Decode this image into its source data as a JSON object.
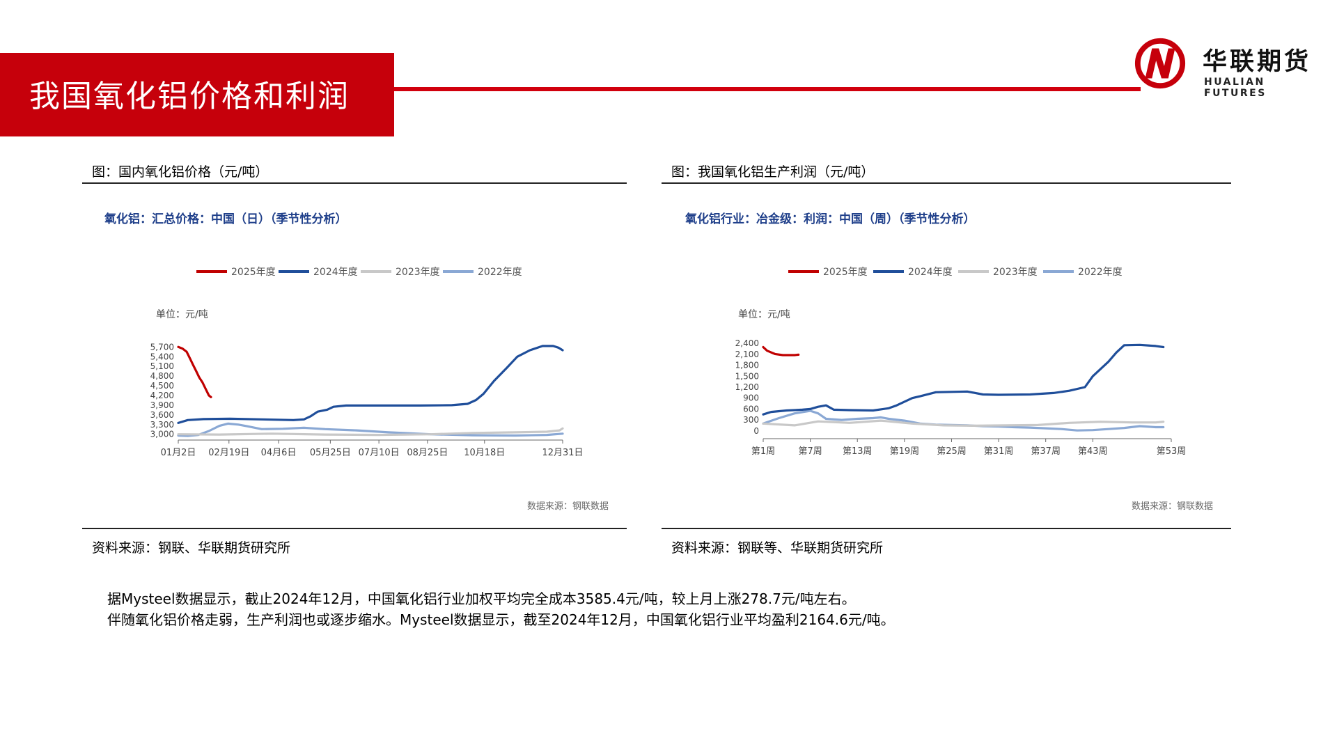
{
  "header": {
    "title": "我国氧化铝价格和利润",
    "logo_cn": "华联期货",
    "logo_en": "HUALIAN FUTURES",
    "accent_color": "#c6000b"
  },
  "panels": [
    {
      "caption": "图：国内氧化铝价格（元/吨）",
      "source": "资料来源：钢联、华联期货研究所"
    },
    {
      "caption": "图：我国氧化铝生产利润（元/吨）",
      "source": "资料来源：钢联等、华联期货研究所"
    }
  ],
  "summary": [
    "据Mysteel数据显示，截止2024年12月，中国氧化铝行业加权平均完全成本3585.4元/吨，较上月上涨278.7元/吨左右。",
    "伴随氧化铝价格走弱，生产利润也或逐步缩水。Mysteel数据显示，截至2024年12月，中国氧化铝行业平均盈利2164.6元/吨。"
  ],
  "chart_data": [
    {
      "type": "line",
      "title": "氧化铝：汇总价格：中国（日）（季节性分析）",
      "unit_label": "单位：元/吨",
      "source_note": "数据来源：钢联数据",
      "x_ticks": [
        "01月2日",
        "02月19日",
        "04月6日",
        "05月25日",
        "07月10日",
        "08月25日",
        "10月18日",
        "12月31日"
      ],
      "x_tick_days": [
        1,
        49,
        96,
        145,
        191,
        237,
        291,
        365
      ],
      "y_ticks": [
        "5,700",
        "5,400",
        "5,100",
        "4,800",
        "4,500",
        "4,200",
        "3,900",
        "3,600",
        "3,300",
        "3,000"
      ],
      "ylim": [
        2950,
        5750
      ],
      "legend_position": "top",
      "series": [
        {
          "name": "2025年度",
          "color": "#c00000",
          "points": [
            [
              1,
              5700
            ],
            [
              5,
              5650
            ],
            [
              9,
              5550
            ],
            [
              12,
              5350
            ],
            [
              15,
              5150
            ],
            [
              18,
              4950
            ],
            [
              21,
              4750
            ],
            [
              24,
              4600
            ],
            [
              27,
              4400
            ],
            [
              30,
              4200
            ],
            [
              32,
              4150
            ]
          ]
        },
        {
          "name": "2024年度",
          "color": "#1f4e9a",
          "points": [
            [
              1,
              3350
            ],
            [
              10,
              3440
            ],
            [
              25,
              3470
            ],
            [
              50,
              3480
            ],
            [
              80,
              3460
            ],
            [
              110,
              3440
            ],
            [
              120,
              3460
            ],
            [
              126,
              3550
            ],
            [
              133,
              3700
            ],
            [
              142,
              3760
            ],
            [
              148,
              3850
            ],
            [
              160,
              3890
            ],
            [
              190,
              3890
            ],
            [
              230,
              3890
            ],
            [
              260,
              3900
            ],
            [
              275,
              3940
            ],
            [
              283,
              4060
            ],
            [
              290,
              4250
            ],
            [
              300,
              4650
            ],
            [
              312,
              5050
            ],
            [
              322,
              5400
            ],
            [
              334,
              5600
            ],
            [
              346,
              5730
            ],
            [
              356,
              5730
            ],
            [
              361,
              5680
            ],
            [
              365,
              5600
            ]
          ]
        },
        {
          "name": "2023年度",
          "color": "#c8c8c8",
          "points": [
            [
              1,
              3000
            ],
            [
              40,
              2990
            ],
            [
              90,
              3020
            ],
            [
              140,
              2990
            ],
            [
              190,
              2980
            ],
            [
              240,
              3000
            ],
            [
              280,
              3040
            ],
            [
              320,
              3060
            ],
            [
              350,
              3080
            ],
            [
              362,
              3120
            ],
            [
              365,
              3180
            ]
          ]
        },
        {
          "name": "2022年度",
          "color": "#8aa8d4",
          "points": [
            [
              1,
              2960
            ],
            [
              10,
              2950
            ],
            [
              20,
              2980
            ],
            [
              30,
              3100
            ],
            [
              40,
              3260
            ],
            [
              48,
              3330
            ],
            [
              58,
              3300
            ],
            [
              66,
              3250
            ],
            [
              80,
              3160
            ],
            [
              100,
              3170
            ],
            [
              120,
              3200
            ],
            [
              140,
              3160
            ],
            [
              170,
              3120
            ],
            [
              200,
              3060
            ],
            [
              240,
              3000
            ],
            [
              280,
              2970
            ],
            [
              320,
              2960
            ],
            [
              350,
              2980
            ],
            [
              365,
              3020
            ]
          ]
        }
      ]
    },
    {
      "type": "line",
      "title": "氧化铝行业：冶金级：利润：中国（周）（季节性分析）",
      "unit_label": "单位：元/吨",
      "source_note": "数据来源：钢联数据",
      "x_ticks": [
        "第1周",
        "第7周",
        "第13周",
        "第19周",
        "第25周",
        "第31周",
        "第37周",
        "第43周",
        "第53周"
      ],
      "x_tick_weeks": [
        1,
        7,
        13,
        19,
        25,
        31,
        37,
        43,
        53
      ],
      "y_ticks": [
        "2,400",
        "2,100",
        "1,800",
        "1,500",
        "1,200",
        "900",
        "600",
        "300",
        "0"
      ],
      "ylim": [
        -100,
        2500
      ],
      "legend_position": "top",
      "series": [
        {
          "name": "2025年度",
          "color": "#c00000",
          "points": [
            [
              1,
              2300
            ],
            [
              1.5,
              2200
            ],
            [
              2.5,
              2110
            ],
            [
              3.5,
              2080
            ],
            [
              5,
              2080
            ],
            [
              5.5,
              2090
            ]
          ]
        },
        {
          "name": "2024年度",
          "color": "#1f4e9a",
          "points": [
            [
              1,
              450
            ],
            [
              2,
              520
            ],
            [
              4,
              560
            ],
            [
              6,
              580
            ],
            [
              7,
              600
            ],
            [
              8,
              660
            ],
            [
              9,
              700
            ],
            [
              10,
              580
            ],
            [
              12,
              570
            ],
            [
              15,
              560
            ],
            [
              17,
              620
            ],
            [
              18,
              700
            ],
            [
              20,
              900
            ],
            [
              21,
              950
            ],
            [
              23,
              1060
            ],
            [
              27,
              1080
            ],
            [
              29,
              1000
            ],
            [
              31,
              990
            ],
            [
              35,
              1000
            ],
            [
              38,
              1040
            ],
            [
              40,
              1100
            ],
            [
              42,
              1200
            ],
            [
              43,
              1500
            ],
            [
              45,
              1900
            ],
            [
              46,
              2150
            ],
            [
              47,
              2350
            ],
            [
              49,
              2360
            ],
            [
              51,
              2330
            ],
            [
              52,
              2300
            ]
          ]
        },
        {
          "name": "2023年度",
          "color": "#c8c8c8",
          "points": [
            [
              1,
              200
            ],
            [
              5,
              150
            ],
            [
              8,
              260
            ],
            [
              12,
              220
            ],
            [
              16,
              280
            ],
            [
              20,
              200
            ],
            [
              24,
              150
            ],
            [
              28,
              140
            ],
            [
              32,
              150
            ],
            [
              36,
              160
            ],
            [
              40,
              220
            ],
            [
              44,
              250
            ],
            [
              48,
              230
            ],
            [
              51,
              230
            ],
            [
              52,
              250
            ]
          ]
        },
        {
          "name": "2022年度",
          "color": "#8aa8d4",
          "points": [
            [
              1,
              200
            ],
            [
              3,
              350
            ],
            [
              5,
              480
            ],
            [
              7,
              550
            ],
            [
              8,
              480
            ],
            [
              9,
              330
            ],
            [
              11,
              300
            ],
            [
              13,
              330
            ],
            [
              15,
              350
            ],
            [
              16,
              370
            ],
            [
              17,
              330
            ],
            [
              19,
              280
            ],
            [
              21,
              200
            ],
            [
              23,
              170
            ],
            [
              25,
              160
            ],
            [
              27,
              150
            ],
            [
              29,
              130
            ],
            [
              31,
              120
            ],
            [
              33,
              100
            ],
            [
              35,
              90
            ],
            [
              37,
              70
            ],
            [
              39,
              50
            ],
            [
              41,
              10
            ],
            [
              43,
              20
            ],
            [
              45,
              50
            ],
            [
              47,
              80
            ],
            [
              49,
              130
            ],
            [
              51,
              100
            ],
            [
              52,
              100
            ]
          ]
        }
      ]
    }
  ]
}
